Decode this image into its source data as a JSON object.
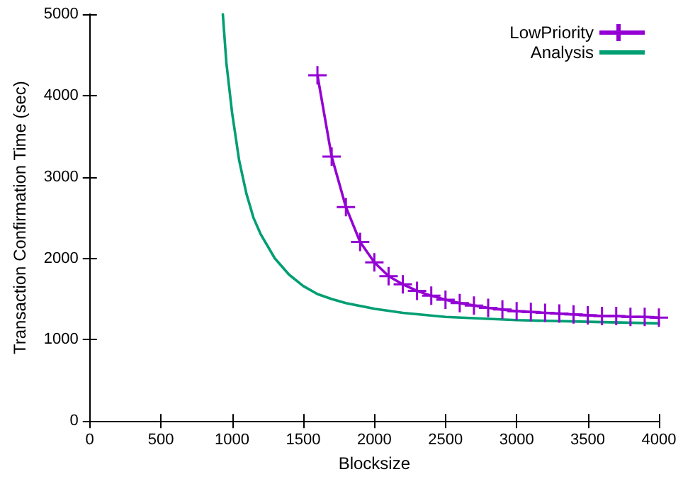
{
  "chart_data": {
    "type": "line",
    "xlabel": "Blocksize",
    "ylabel": "Transaction Confirmation Time (sec)",
    "xlim": [
      0,
      4000
    ],
    "xticks": [
      0,
      500,
      1000,
      1500,
      2000,
      2500,
      3000,
      3500,
      4000
    ],
    "ylim": [
      0,
      5000
    ],
    "yticks": [
      0,
      1000,
      2000,
      3000,
      4000,
      5000
    ],
    "grid": false,
    "legend": "top right",
    "series": [
      {
        "name": "LowPriority",
        "color": "#9400d3",
        "marker": "cross",
        "x": [
          1600,
          1700,
          1800,
          1900,
          2000,
          2100,
          2200,
          2300,
          2400,
          2500,
          2600,
          2700,
          2800,
          2900,
          3000,
          3100,
          3200,
          3300,
          3400,
          3500,
          3600,
          3700,
          3800,
          3900,
          4000
        ],
        "values": [
          4250,
          3250,
          2630,
          2200,
          1950,
          1780,
          1680,
          1600,
          1540,
          1490,
          1450,
          1420,
          1390,
          1370,
          1350,
          1340,
          1330,
          1320,
          1310,
          1300,
          1290,
          1290,
          1280,
          1280,
          1270
        ]
      },
      {
        "name": "Analysis",
        "color": "#009e73",
        "marker": "none",
        "x": [
          935,
          960,
          1000,
          1050,
          1100,
          1150,
          1200,
          1300,
          1400,
          1500,
          1600,
          1700,
          1800,
          2000,
          2200,
          2500,
          3000,
          3500,
          4000
        ],
        "values": [
          5000,
          4400,
          3790,
          3200,
          2800,
          2500,
          2300,
          2000,
          1800,
          1660,
          1560,
          1500,
          1450,
          1380,
          1330,
          1280,
          1240,
          1220,
          1200
        ]
      }
    ]
  }
}
